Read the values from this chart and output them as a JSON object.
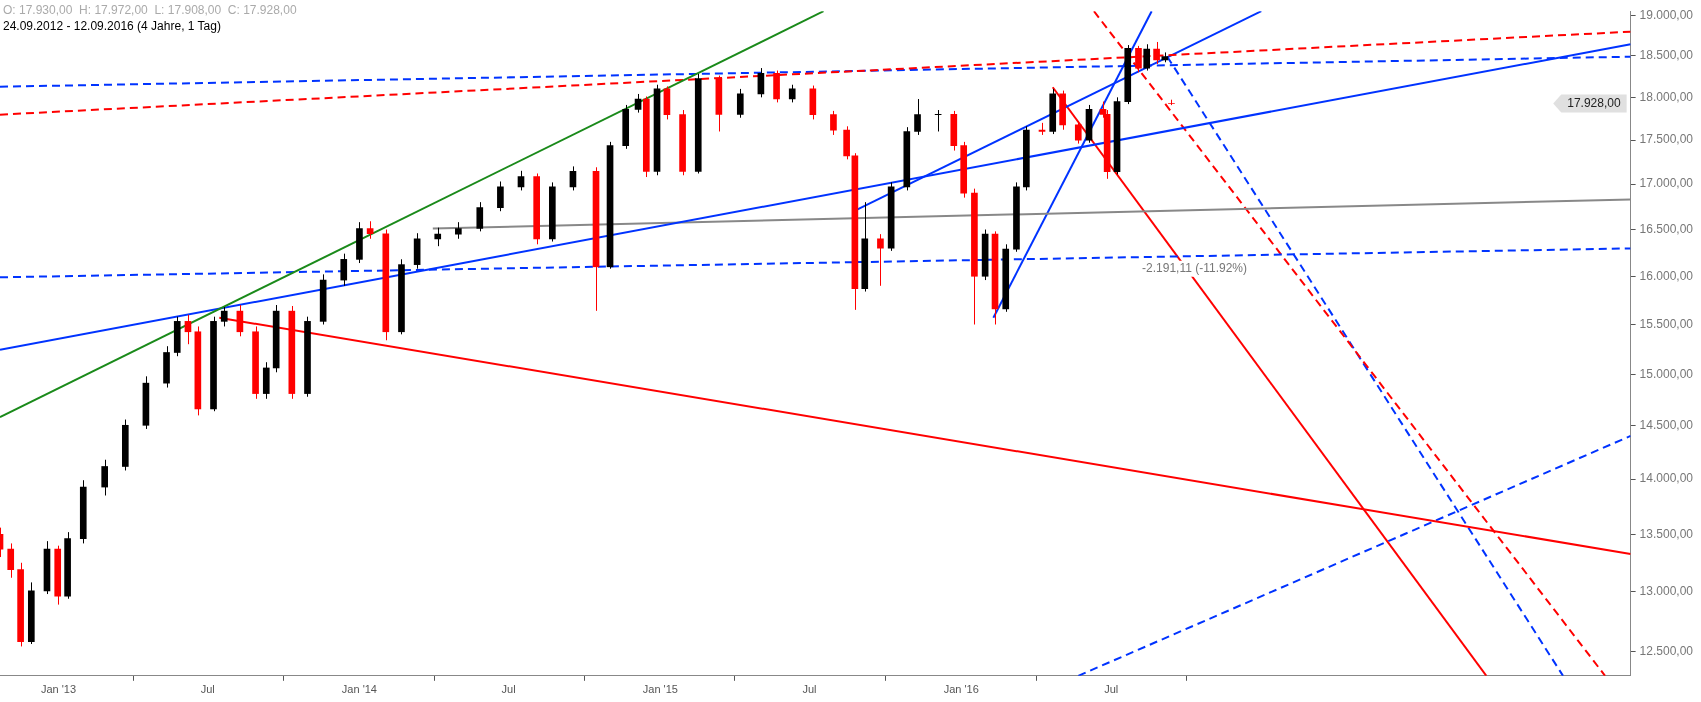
{
  "chart_data": {
    "type": "candlestick",
    "title": "O: 17.930,00  H: 17.972,00  L: 17.908,00  C: 17.928,00",
    "subtitle": "24.09.2012 - 12.09.2016 (4 Jahre, 1 Tag)",
    "x": [
      "2012-10-22",
      "2012-11-04",
      "2012-11-16",
      "2012-11-29",
      "2012-12-18",
      "2012-12-31",
      "2013-01-12",
      "2013-01-31",
      "2013-02-26",
      "2013-03-23",
      "2013-04-17",
      "2013-05-12",
      "2013-05-25",
      "2013-06-07",
      "2013-06-19",
      "2013-07-08",
      "2013-07-21",
      "2013-08-09",
      "2013-08-28",
      "2013-09-10",
      "2013-09-22",
      "2013-10-11",
      "2013-10-30",
      "2013-11-18",
      "2013-12-13",
      "2014-01-01",
      "2014-01-14",
      "2014-02-02",
      "2014-02-21",
      "2014-03-12",
      "2014-04-06",
      "2014-05-01",
      "2014-05-27",
      "2014-06-21",
      "2014-07-16",
      "2014-08-04",
      "2014-08-23",
      "2014-09-17",
      "2014-10-15",
      "2014-11-01",
      "2014-11-20",
      "2014-12-05",
      "2014-12-15",
      "2014-12-28",
      "2015-01-09",
      "2015-01-28",
      "2015-02-16",
      "2015-03-13",
      "2015-04-08",
      "2015-05-03",
      "2015-05-22",
      "2015-06-10",
      "2015-07-05",
      "2015-07-30",
      "2015-08-15",
      "2015-08-25",
      "2015-09-06",
      "2015-09-25",
      "2015-10-08",
      "2015-10-27",
      "2015-11-09",
      "2015-12-04",
      "2015-12-23",
      "2016-01-04",
      "2016-01-17",
      "2016-01-30",
      "2016-02-11",
      "2016-02-24",
      "2016-03-08",
      "2016-03-20",
      "2016-04-08",
      "2016-04-21",
      "2016-05-03",
      "2016-05-22",
      "2016-06-04",
      "2016-06-21",
      "2016-06-26",
      "2016-07-08",
      "2016-07-21",
      "2016-08-03",
      "2016-08-13",
      "2016-08-25",
      "2016-09-04",
      "2016-09-12"
    ],
    "ohlc": [
      [
        13500,
        13560,
        13300,
        13370
      ],
      [
        13370,
        13420,
        13120,
        13190
      ],
      [
        13190,
        13250,
        12540,
        12580
      ],
      [
        12580,
        13080,
        12560,
        13007
      ],
      [
        13007,
        13440,
        12980,
        13370
      ],
      [
        13370,
        13400,
        12890,
        12962
      ],
      [
        12962,
        13520,
        12940,
        13462
      ],
      [
        13462,
        13990,
        13420,
        13927
      ],
      [
        13927,
        14180,
        13850,
        14117
      ],
      [
        14117,
        14560,
        14080,
        14505
      ],
      [
        14505,
        14980,
        14470,
        14913
      ],
      [
        14913,
        15280,
        14870,
        15217
      ],
      [
        15217,
        15580,
        15180,
        15532
      ],
      [
        15532,
        15600,
        15300,
        15426
      ],
      [
        15426,
        15480,
        14600,
        14662
      ],
      [
        14662,
        15580,
        14640,
        15532
      ],
      [
        15532,
        15680,
        15480,
        15637
      ],
      [
        15637,
        15700,
        15380,
        15426
      ],
      [
        15426,
        15480,
        14760,
        14811
      ],
      [
        14811,
        15120,
        14760,
        15063
      ],
      [
        15063,
        15700,
        15020,
        15637
      ],
      [
        15637,
        15690,
        14760,
        14811
      ],
      [
        14811,
        15580,
        14780,
        15532
      ],
      [
        15532,
        16020,
        15500,
        15960
      ],
      [
        15960,
        16240,
        15900,
        16179
      ],
      [
        16179,
        16580,
        16140,
        16511
      ],
      [
        16511,
        16590,
        16400,
        16454
      ],
      [
        16454,
        16500,
        15340,
        15426
      ],
      [
        15426,
        16180,
        15400,
        16123
      ],
      [
        16123,
        16460,
        16080,
        16399
      ],
      [
        16399,
        16520,
        16320,
        16450
      ],
      [
        16450,
        16580,
        16400,
        16511
      ],
      [
        16511,
        16800,
        16480,
        16739
      ],
      [
        16739,
        17030,
        16700,
        16969
      ],
      [
        16969,
        17150,
        16930,
        17085
      ],
      [
        17085,
        17120,
        16340,
        16399
      ],
      [
        16399,
        17020,
        16370,
        16969
      ],
      [
        16969,
        17200,
        16930,
        17143
      ],
      [
        17143,
        17190,
        15640,
        16100
      ],
      [
        16100,
        17480,
        16080,
        17437
      ],
      [
        17437,
        17910,
        17400,
        17857
      ],
      [
        17857,
        18040,
        17820,
        17980
      ],
      [
        17980,
        18010,
        17080,
        17143
      ],
      [
        17143,
        18150,
        17100,
        18102
      ],
      [
        18102,
        18130,
        17740,
        17796
      ],
      [
        17796,
        17850,
        17100,
        17143
      ],
      [
        17143,
        18280,
        17120,
        18225
      ],
      [
        18225,
        18260,
        17600,
        17800
      ],
      [
        17800,
        18100,
        17760,
        18041
      ],
      [
        18041,
        18350,
        18000,
        18288
      ],
      [
        18288,
        18320,
        17940,
        17980
      ],
      [
        17980,
        18150,
        17940,
        18102
      ],
      [
        18102,
        18140,
        17740,
        17796
      ],
      [
        17796,
        17840,
        17560,
        17615
      ],
      [
        17615,
        17660,
        17280,
        17319
      ],
      [
        17319,
        17350,
        15650,
        15870
      ],
      [
        15870,
        16800,
        15840,
        16400
      ],
      [
        16400,
        16450,
        15900,
        16300
      ],
      [
        16300,
        17020,
        16270,
        16969
      ],
      [
        16969,
        17650,
        16930,
        17600
      ],
      [
        17600,
        17980,
        17560,
        17796
      ],
      [
        17796,
        17850,
        17600,
        17800
      ],
      [
        17800,
        17840,
        17380,
        17437
      ],
      [
        17437,
        17480,
        16850,
        16900
      ],
      [
        16900,
        16950,
        15500,
        16000
      ],
      [
        16000,
        16500,
        15960,
        16450
      ],
      [
        16450,
        16480,
        15500,
        15660
      ],
      [
        15660,
        16340,
        15630,
        16289
      ],
      [
        16289,
        17020,
        16260,
        16969
      ],
      [
        16969,
        17660,
        16930,
        17615
      ],
      [
        17615,
        17700,
        17560,
        17600
      ],
      [
        17600,
        18100,
        17570,
        18041
      ],
      [
        18041,
        18080,
        17620,
        17676
      ],
      [
        17676,
        17720,
        17460,
        17500
      ],
      [
        17500,
        17910,
        17470,
        17857
      ],
      [
        17857,
        17950,
        17760,
        17800
      ],
      [
        17800,
        17850,
        17060,
        17140
      ],
      [
        17140,
        18000,
        17110,
        17950
      ],
      [
        17950,
        18630,
        17920,
        18590
      ],
      [
        18590,
        18620,
        18300,
        18350
      ],
      [
        18350,
        18640,
        18320,
        18580
      ],
      [
        18580,
        18668,
        18400,
        18450
      ],
      [
        18450,
        18540,
        18420,
        18490
      ],
      [
        17930,
        17972,
        17908,
        17928
      ]
    ],
    "colors": [
      "#ff0000",
      "#ff0000",
      "#ff0000",
      "#000000",
      "#000000",
      "#ff0000",
      "#000000",
      "#000000",
      "#000000",
      "#000000",
      "#000000",
      "#000000",
      "#000000",
      "#ff0000",
      "#ff0000",
      "#000000",
      "#000000",
      "#ff0000",
      "#ff0000",
      "#000000",
      "#000000",
      "#ff0000",
      "#000000",
      "#000000",
      "#000000",
      "#000000",
      "#ff0000",
      "#ff0000",
      "#000000",
      "#000000",
      "#000000",
      "#000000",
      "#000000",
      "#000000",
      "#000000",
      "#ff0000",
      "#000000",
      "#000000",
      "#ff0000",
      "#000000",
      "#000000",
      "#000000",
      "#ff0000",
      "#000000",
      "#ff0000",
      "#ff0000",
      "#000000",
      "#ff0000",
      "#000000",
      "#000000",
      "#ff0000",
      "#000000",
      "#ff0000",
      "#ff0000",
      "#ff0000",
      "#ff0000",
      "#000000",
      "#ff0000",
      "#000000",
      "#000000",
      "#000000",
      "#000000",
      "#ff0000",
      "#ff0000",
      "#ff0000",
      "#000000",
      "#ff0000",
      "#000000",
      "#000000",
      "#000000",
      "#ff0000",
      "#000000",
      "#ff0000",
      "#ff0000",
      "#000000",
      "#ff0000",
      "#ff0000",
      "#000000",
      "#000000",
      "#ff0000",
      "#000000",
      "#ff0000",
      "#000000",
      "#ff0000"
    ],
    "series": [
      {
        "type": "line",
        "color": "#1a8a1a",
        "line_style": "solid",
        "x": [
          "2012-10-22",
          "2015-07-18"
        ],
        "values": [
          14583,
          19050
        ]
      },
      {
        "type": "line",
        "color": "#ff0000",
        "line_style": "dashed",
        "x": [
          "2012-10-22",
          "2018-03-23"
        ],
        "values": [
          17796,
          18795
        ]
      },
      {
        "type": "line",
        "color": "#0033ff",
        "line_style": "dashed",
        "x": [
          "2012-10-22",
          "2018-03-23"
        ],
        "values": [
          18126,
          18488
        ]
      },
      {
        "type": "line",
        "color": "#0033ff",
        "line_style": "solid",
        "x": [
          "2012-10-22",
          "2018-03-23"
        ],
        "values": [
          15244,
          18641
        ]
      },
      {
        "type": "line",
        "color": "#0033ff",
        "line_style": "dashed",
        "x": [
          "2012-10-22",
          "2018-03-23"
        ],
        "values": [
          15989,
          16296
        ]
      },
      {
        "type": "line",
        "color": "#888888",
        "line_style": "solid",
        "x": [
          "2014-03-31",
          "2018-03-23"
        ],
        "values": [
          16511,
          16829
        ]
      },
      {
        "type": "line",
        "color": "#ff0000",
        "line_style": "solid",
        "x": [
          "2013-07-15",
          "2018-03-23"
        ],
        "values": [
          15569,
          13327
        ]
      },
      {
        "type": "line",
        "color": "#0033ff",
        "line_style": "solid",
        "x": [
          "2015-08-27",
          "2016-12-30"
        ],
        "values": [
          16714,
          19050
        ]
      },
      {
        "type": "line",
        "color": "#0033ff",
        "line_style": "solid",
        "x": [
          "2016-02-09",
          "2016-08-19"
        ],
        "values": [
          15569,
          19050
        ]
      },
      {
        "type": "line",
        "color": "#ff0000",
        "line_style": "solid",
        "x": [
          "2016-04-21",
          "2017-09-29"
        ],
        "values": [
          18120,
          12300
        ]
      },
      {
        "type": "line",
        "color": "#ff0000",
        "line_style": "dashed",
        "x": [
          "2016-06-10",
          "2018-02-20"
        ],
        "values": [
          19050,
          12300
        ]
      },
      {
        "type": "line",
        "color": "#0033ff",
        "line_style": "dashed",
        "x": [
          "2016-09-07",
          "2017-12-31"
        ],
        "values": [
          18488,
          12300
        ]
      },
      {
        "type": "line",
        "color": "#0033ff",
        "line_style": "dashed",
        "x": [
          "2016-05-22",
          "2018-03-23"
        ],
        "values": [
          12300,
          14404
        ]
      }
    ],
    "annotations": [
      {
        "text": "-2.191,11 (-11.92%)",
        "x": "2016-10-10",
        "y": 16207
      },
      "17.928,00"
    ],
    "xlim": [
      "2012-10-22",
      "2018-03-23"
    ],
    "ylim": [
      12300,
      19050
    ],
    "log": "y",
    "grid": false,
    "legend": false,
    "xticks": [
      {
        "value": "2013-01",
        "label": "Jan '13"
      },
      {
        "value": "2013-07",
        "label": "Jul"
      },
      {
        "value": "2014-01",
        "label": "Jan '14"
      },
      {
        "value": "2014-07",
        "label": "Jul"
      },
      {
        "value": "2015-01",
        "label": "Jan '15"
      },
      {
        "value": "2015-07",
        "label": "Jul"
      },
      {
        "value": "2016-01",
        "label": "Jan '16"
      },
      {
        "value": "2016-07",
        "label": "Jul"
      }
    ],
    "yticks": [
      {
        "value": 12500,
        "label": "12.500,00"
      },
      {
        "value": 13000,
        "label": "13.000,00"
      },
      {
        "value": 13500,
        "label": "13.500,00"
      },
      {
        "value": 14000,
        "label": "14.000,00"
      },
      {
        "value": 14500,
        "label": "14.500,00"
      },
      {
        "value": 15000,
        "label": "15.000,00"
      },
      {
        "value": 15500,
        "label": "15.500,00"
      },
      {
        "value": 16000,
        "label": "16.000,00"
      },
      {
        "value": 16500,
        "label": "16.500,00"
      },
      {
        "value": 17000,
        "label": "17.000,00"
      },
      {
        "value": 17500,
        "label": "17.500,00"
      },
      {
        "value": 18000,
        "label": "18.000,00"
      },
      {
        "value": 18500,
        "label": "18.500,00"
      },
      {
        "value": 19000,
        "label": "19.000,00"
      }
    ]
  }
}
